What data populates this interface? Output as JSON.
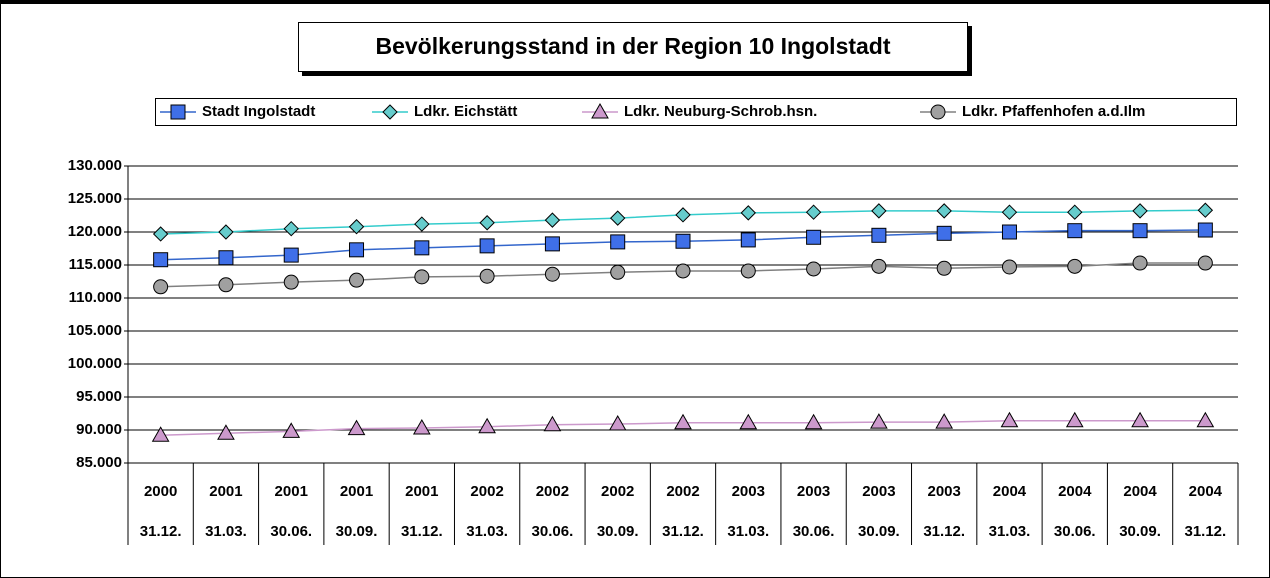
{
  "chart_data": {
    "type": "line",
    "title": "Bevölkerungsstand in der Region 10 Ingolstadt",
    "category_groups": [
      "2000",
      "2001",
      "2001",
      "2001",
      "2001",
      "2002",
      "2002",
      "2002",
      "2002",
      "2003",
      "2003",
      "2003",
      "2003",
      "2004",
      "2004",
      "2004",
      "2004"
    ],
    "categories": [
      "31.12.",
      "31.03.",
      "30.06.",
      "30.09.",
      "31.12.",
      "31.03.",
      "30.06.",
      "30.09.",
      "31.12.",
      "31.03.",
      "30.06.",
      "30.09.",
      "31.12.",
      "31.03.",
      "30.06.",
      "30.09.",
      "31.12."
    ],
    "series": [
      {
        "name": "Stadt Ingolstadt",
        "color": "#3366cc",
        "marker": "square",
        "marker_color": "#3f6fe8",
        "values": [
          115800,
          116100,
          116500,
          117300,
          117600,
          117900,
          118200,
          118500,
          118600,
          118800,
          119200,
          119500,
          119800,
          120000,
          120200,
          120200,
          120300
        ]
      },
      {
        "name": "Ldkr. Eichstätt",
        "color": "#33cccc",
        "marker": "diamond",
        "marker_color": "#66cccc",
        "values": [
          119700,
          120000,
          120500,
          120800,
          121200,
          121400,
          121800,
          122100,
          122600,
          122900,
          123000,
          123200,
          123200,
          123000,
          123000,
          123200,
          123300
        ]
      },
      {
        "name": "Ldkr. Neuburg-Schrob.hsn.",
        "color": "#cc99cc",
        "marker": "triangle",
        "marker_color": "#cc99cc",
        "values": [
          89200,
          89500,
          89800,
          90200,
          90300,
          90500,
          90800,
          90900,
          91100,
          91100,
          91100,
          91200,
          91200,
          91400,
          91400,
          91400,
          91400
        ]
      },
      {
        "name": "Ldkr. Pfaffenhofen a.d.Ilm",
        "color": "#808080",
        "marker": "circle",
        "marker_color": "#a0a0a0",
        "values": [
          111700,
          112000,
          112400,
          112700,
          113200,
          113300,
          113600,
          113900,
          114100,
          114100,
          114400,
          114800,
          114500,
          114700,
          114800,
          115300,
          115300
        ]
      }
    ],
    "ylim": [
      85000,
      130000
    ],
    "yticks": [
      {
        "value": 85000,
        "label": "85.000"
      },
      {
        "value": 90000,
        "label": "90.000"
      },
      {
        "value": 95000,
        "label": "95.000"
      },
      {
        "value": 100000,
        "label": "100.000"
      },
      {
        "value": 105000,
        "label": "105.000"
      },
      {
        "value": 110000,
        "label": "110.000"
      },
      {
        "value": 115000,
        "label": "115.000"
      },
      {
        "value": 120000,
        "label": "120.000"
      },
      {
        "value": 125000,
        "label": "125.000"
      },
      {
        "value": 130000,
        "label": "130.000"
      }
    ],
    "grid": true,
    "legend": "top"
  }
}
